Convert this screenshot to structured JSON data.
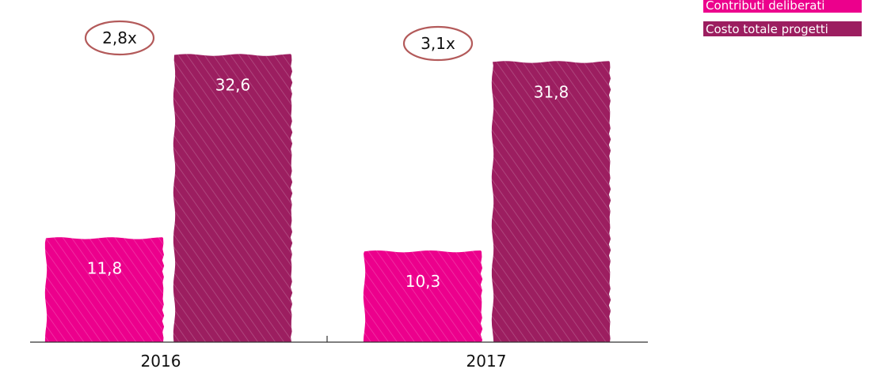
{
  "colors": {
    "contributi": "#ec008c",
    "costo": "#9c1e60",
    "ratio_ring": "#b35a5a",
    "axis": "#333333"
  },
  "legend": {
    "items": [
      {
        "label": "Contributi deliberati",
        "color": "#ec008c"
      },
      {
        "label": "Costo totale progetti",
        "color": "#9c1e60"
      }
    ]
  },
  "chart_data": {
    "type": "bar",
    "categories": [
      "2016",
      "2017"
    ],
    "series": [
      {
        "name": "Contributi deliberati",
        "values": [
          11.8,
          10.3
        ],
        "labels": [
          "11,8",
          "10,3"
        ]
      },
      {
        "name": "Costo totale progetti",
        "values": [
          32.6,
          31.8
        ],
        "labels": [
          "32,6",
          "31,8"
        ]
      }
    ],
    "annotations": [
      "2,8x",
      "3,1x"
    ],
    "ylim": [
      0,
      34.8
    ],
    "grid": false,
    "legend_position": "top-right",
    "title": "",
    "xlabel": "",
    "ylabel": ""
  }
}
